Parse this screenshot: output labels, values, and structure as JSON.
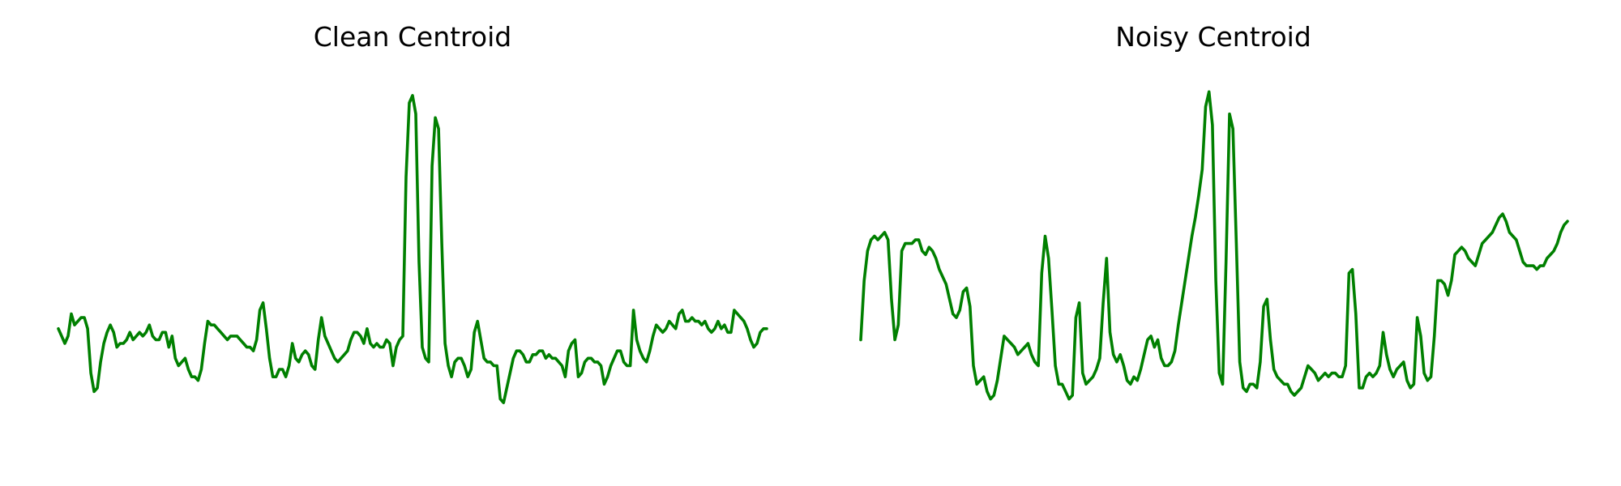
{
  "chart_data": [
    {
      "type": "line",
      "title": "Clean Centroid",
      "xlabel": "",
      "ylabel": "",
      "grid": false,
      "axes_visible": false,
      "color": "#008000",
      "ylim": [
        0,
        1
      ],
      "values": [
        0.32,
        0.3,
        0.28,
        0.3,
        0.36,
        0.33,
        0.34,
        0.35,
        0.35,
        0.32,
        0.2,
        0.15,
        0.16,
        0.23,
        0.28,
        0.31,
        0.33,
        0.31,
        0.27,
        0.28,
        0.28,
        0.29,
        0.31,
        0.29,
        0.3,
        0.31,
        0.3,
        0.31,
        0.33,
        0.3,
        0.29,
        0.29,
        0.31,
        0.31,
        0.27,
        0.3,
        0.24,
        0.22,
        0.23,
        0.24,
        0.21,
        0.19,
        0.19,
        0.18,
        0.21,
        0.28,
        0.34,
        0.33,
        0.33,
        0.32,
        0.31,
        0.3,
        0.29,
        0.3,
        0.3,
        0.3,
        0.29,
        0.28,
        0.27,
        0.27,
        0.26,
        0.29,
        0.37,
        0.39,
        0.32,
        0.24,
        0.19,
        0.19,
        0.21,
        0.21,
        0.19,
        0.22,
        0.28,
        0.24,
        0.23,
        0.25,
        0.26,
        0.25,
        0.22,
        0.21,
        0.29,
        0.35,
        0.3,
        0.28,
        0.26,
        0.24,
        0.23,
        0.24,
        0.25,
        0.26,
        0.29,
        0.31,
        0.31,
        0.3,
        0.28,
        0.32,
        0.28,
        0.27,
        0.28,
        0.27,
        0.27,
        0.29,
        0.28,
        0.22,
        0.27,
        0.29,
        0.3,
        0.73,
        0.93,
        0.95,
        0.9,
        0.5,
        0.27,
        0.24,
        0.23,
        0.76,
        0.89,
        0.86,
        0.55,
        0.28,
        0.22,
        0.19,
        0.23,
        0.24,
        0.24,
        0.22,
        0.19,
        0.21,
        0.31,
        0.34,
        0.29,
        0.24,
        0.23,
        0.23,
        0.22,
        0.22,
        0.13,
        0.12,
        0.16,
        0.2,
        0.24,
        0.26,
        0.26,
        0.25,
        0.23,
        0.23,
        0.25,
        0.25,
        0.26,
        0.26,
        0.24,
        0.25,
        0.24,
        0.24,
        0.23,
        0.22,
        0.19,
        0.26,
        0.28,
        0.29,
        0.19,
        0.2,
        0.23,
        0.24,
        0.24,
        0.23,
        0.23,
        0.22,
        0.17,
        0.19,
        0.22,
        0.24,
        0.26,
        0.26,
        0.23,
        0.22,
        0.22,
        0.37,
        0.29,
        0.26,
        0.24,
        0.23,
        0.26,
        0.3,
        0.33,
        0.32,
        0.31,
        0.32,
        0.34,
        0.33,
        0.32,
        0.36,
        0.37,
        0.34,
        0.34,
        0.35,
        0.34,
        0.34,
        0.33,
        0.34,
        0.32,
        0.31,
        0.32,
        0.34,
        0.32,
        0.33,
        0.31,
        0.31,
        0.37,
        0.36,
        0.35,
        0.34,
        0.32,
        0.29,
        0.27,
        0.28,
        0.31,
        0.32,
        0.32
      ]
    },
    {
      "type": "line",
      "title": "Noisy Centroid",
      "xlabel": "",
      "ylabel": "",
      "grid": false,
      "axes_visible": false,
      "color": "#008000",
      "ylim": [
        0,
        1
      ],
      "values": [
        0.29,
        0.45,
        0.53,
        0.56,
        0.57,
        0.56,
        0.57,
        0.58,
        0.56,
        0.4,
        0.29,
        0.33,
        0.53,
        0.55,
        0.55,
        0.55,
        0.56,
        0.56,
        0.53,
        0.52,
        0.54,
        0.53,
        0.51,
        0.48,
        0.46,
        0.44,
        0.4,
        0.36,
        0.35,
        0.37,
        0.42,
        0.43,
        0.38,
        0.22,
        0.17,
        0.18,
        0.19,
        0.15,
        0.13,
        0.14,
        0.18,
        0.24,
        0.3,
        0.29,
        0.28,
        0.27,
        0.25,
        0.26,
        0.27,
        0.28,
        0.25,
        0.23,
        0.22,
        0.47,
        0.57,
        0.51,
        0.37,
        0.22,
        0.17,
        0.17,
        0.15,
        0.13,
        0.14,
        0.35,
        0.39,
        0.2,
        0.17,
        0.18,
        0.19,
        0.21,
        0.24,
        0.39,
        0.51,
        0.31,
        0.25,
        0.23,
        0.25,
        0.22,
        0.18,
        0.17,
        0.19,
        0.18,
        0.21,
        0.25,
        0.29,
        0.3,
        0.27,
        0.29,
        0.24,
        0.22,
        0.22,
        0.23,
        0.26,
        0.33,
        0.39,
        0.45,
        0.51,
        0.57,
        0.62,
        0.68,
        0.75,
        0.92,
        0.96,
        0.87,
        0.45,
        0.2,
        0.17,
        0.5,
        0.9,
        0.86,
        0.55,
        0.23,
        0.16,
        0.15,
        0.17,
        0.17,
        0.16,
        0.23,
        0.38,
        0.4,
        0.29,
        0.21,
        0.19,
        0.18,
        0.17,
        0.17,
        0.15,
        0.14,
        0.15,
        0.16,
        0.19,
        0.22,
        0.21,
        0.2,
        0.18,
        0.19,
        0.2,
        0.19,
        0.2,
        0.2,
        0.19,
        0.19,
        0.22,
        0.47,
        0.48,
        0.36,
        0.16,
        0.16,
        0.19,
        0.2,
        0.19,
        0.2,
        0.22,
        0.31,
        0.25,
        0.21,
        0.19,
        0.21,
        0.22,
        0.23,
        0.18,
        0.16,
        0.17,
        0.35,
        0.3,
        0.2,
        0.18,
        0.19,
        0.3,
        0.45,
        0.45,
        0.44,
        0.41,
        0.45,
        0.52,
        0.53,
        0.54,
        0.53,
        0.51,
        0.5,
        0.49,
        0.52,
        0.55,
        0.56,
        0.57,
        0.58,
        0.6,
        0.62,
        0.63,
        0.61,
        0.58,
        0.57,
        0.56,
        0.53,
        0.5,
        0.49,
        0.49,
        0.49,
        0.48,
        0.49,
        0.49,
        0.51,
        0.52,
        0.53,
        0.55,
        0.58,
        0.6,
        0.61
      ]
    }
  ]
}
